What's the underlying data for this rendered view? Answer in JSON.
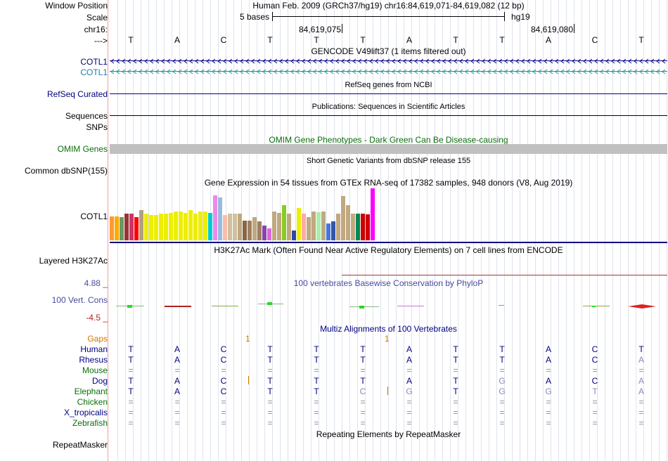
{
  "labels": {
    "window_position": "Window Position",
    "scale": "Scale",
    "chrom": "chr16:",
    "arrow": "--->",
    "cotl1_a": "COTL1",
    "cotl1_b": "COTL1",
    "refseq": "RefSeq Curated",
    "sequences": "Sequences",
    "snps": "SNPs",
    "omim": "OMIM Genes",
    "common_dbsnp": "Common dbSNP(155)",
    "gtex_gene": "COTL1",
    "h3k27ac": "Layered H3K27Ac",
    "cons_max": "4.88 _",
    "cons_label": "100 Vert. Cons",
    "cons_min": "-4.5 _"
  },
  "header": {
    "position": "Human Feb. 2009 (GRCh37/hg19)   chr16:84,619,071-84,619,082 (12 bp)",
    "scale_text": "5 bases",
    "assembly": "hg19",
    "coord1": "84,619,075",
    "coord2": "84,619,080"
  },
  "sequence": [
    "T",
    "A",
    "C",
    "T",
    "T",
    "T",
    "A",
    "T",
    "T",
    "A",
    "C",
    "T"
  ],
  "tracks": {
    "gencode": "GENCODE V49lift37 (1 items filtered out)",
    "refseq_title": "RefSeq genes from NCBI",
    "publications_title": "Publications: Sequences in Scientific Articles",
    "omim_title": "OMIM Gene Phenotypes - Dark Green Can Be Disease-causing",
    "snp_title": "Short Genetic Variants from dbSNP release 155",
    "gtex_title": "Gene Expression in 54 tissues from GTEx RNA-seq of 17382 samples, 948 donors (V8, Aug 2019)",
    "h3k27ac_title": "H3K27Ac Mark (Often Found Near Active Regulatory Elements) on 7 cell lines from ENCODE",
    "phylop_title": "100 vertebrates Basewise Conservation by PhyloP",
    "multiz_title": "Multiz Alignments of 100 Vertebrates",
    "repeat_title": "Repeating Elements by RepeatMasker"
  },
  "multiz": {
    "gaps_label": "Gaps",
    "gaps_marks": [
      "1",
      "1"
    ],
    "species": [
      {
        "name": "Human",
        "bases": [
          "T",
          "A",
          "C",
          "T",
          "T",
          "T",
          "A",
          "T",
          "T",
          "A",
          "C",
          "T"
        ]
      },
      {
        "name": "Rhesus",
        "bases": [
          "T",
          "A",
          "C",
          "T",
          "T",
          "T",
          "A",
          "T",
          "T",
          "A",
          "C",
          "A"
        ]
      },
      {
        "name": "Mouse",
        "bases": [
          "=",
          "=",
          "=",
          "=",
          "=",
          "=",
          "=",
          "=",
          "=",
          "=",
          "=",
          "="
        ]
      },
      {
        "name": "Dog",
        "bases": [
          "T",
          "A",
          "C",
          "T",
          "T",
          "T",
          "A",
          "T",
          "G",
          "A",
          "C",
          "A"
        ]
      },
      {
        "name": "Elephant",
        "bases": [
          "T",
          "A",
          "C",
          "T",
          "T",
          "C",
          "G",
          "T",
          "G",
          "G",
          "T",
          "A"
        ]
      },
      {
        "name": "Chicken",
        "bases": [
          "=",
          "=",
          "=",
          "=",
          "=",
          "=",
          "=",
          "=",
          "=",
          "=",
          "=",
          "="
        ]
      },
      {
        "name": "X_tropicalis",
        "bases": [
          "=",
          "=",
          "=",
          "=",
          "=",
          "=",
          "=",
          "=",
          "=",
          "=",
          "=",
          "="
        ]
      },
      {
        "name": "Zebrafish",
        "bases": [
          "=",
          "=",
          "=",
          "=",
          "=",
          "=",
          "=",
          "=",
          "=",
          "=",
          "=",
          "="
        ]
      }
    ]
  },
  "repeat_label": "RepeatMasker",
  "gtex_bars": [
    {
      "v": 0.46,
      "c": "#ff9933"
    },
    {
      "v": 0.46,
      "c": "#ffaa00"
    },
    {
      "v": 0.45,
      "c": "#669966"
    },
    {
      "v": 0.51,
      "c": "#993333"
    },
    {
      "v": 0.51,
      "c": "#cc3366"
    },
    {
      "v": 0.45,
      "c": "#ff0000"
    },
    {
      "v": 0.58,
      "c": "#b0a080"
    },
    {
      "v": 0.51,
      "c": "#eeee00"
    },
    {
      "v": 0.49,
      "c": "#eeee00"
    },
    {
      "v": 0.49,
      "c": "#eeee00"
    },
    {
      "v": 0.51,
      "c": "#eeee00"
    },
    {
      "v": 0.51,
      "c": "#eeee00"
    },
    {
      "v": 0.53,
      "c": "#eeee00"
    },
    {
      "v": 0.55,
      "c": "#eeee00"
    },
    {
      "v": 0.56,
      "c": "#eeee00"
    },
    {
      "v": 0.53,
      "c": "#eeee00"
    },
    {
      "v": 0.58,
      "c": "#eeee00"
    },
    {
      "v": 0.51,
      "c": "#eeee00"
    },
    {
      "v": 0.55,
      "c": "#eeee00"
    },
    {
      "v": 0.56,
      "c": "#eeee00"
    },
    {
      "v": 0.53,
      "c": "#00cccc"
    },
    {
      "v": 0.87,
      "c": "#ee88ee"
    },
    {
      "v": 0.82,
      "c": "#99bbdd"
    },
    {
      "v": 0.48,
      "c": "#ffbbaa"
    },
    {
      "v": 0.51,
      "c": "#d0c0a0"
    },
    {
      "v": 0.51,
      "c": "#d0c0a0"
    },
    {
      "v": 0.51,
      "c": "#c0a880"
    },
    {
      "v": 0.38,
      "c": "#886644"
    },
    {
      "v": 0.38,
      "c": "#a08060"
    },
    {
      "v": 0.45,
      "c": "#c0a880"
    },
    {
      "v": 0.37,
      "c": "#a08060"
    },
    {
      "v": 0.28,
      "c": "#8844aa"
    },
    {
      "v": 0.23,
      "c": "#dd66dd"
    },
    {
      "v": 0.55,
      "c": "#c0a880"
    },
    {
      "v": 0.53,
      "c": "#c0a880"
    },
    {
      "v": 0.68,
      "c": "#88cc22"
    },
    {
      "v": 0.51,
      "c": "#c0a880"
    },
    {
      "v": 0.19,
      "c": "#3344aa"
    },
    {
      "v": 0.62,
      "c": "#eeee00"
    },
    {
      "v": 0.51,
      "c": "#ffaaaa"
    },
    {
      "v": 0.44,
      "c": "#c0a880"
    },
    {
      "v": 0.55,
      "c": "#c0a880"
    },
    {
      "v": 0.54,
      "c": "#aaeeaa"
    },
    {
      "v": 0.55,
      "c": "#c0a880"
    },
    {
      "v": 0.33,
      "c": "#4477dd"
    },
    {
      "v": 0.36,
      "c": "#3355aa"
    },
    {
      "v": 0.52,
      "c": "#c0a880"
    },
    {
      "v": 0.85,
      "c": "#c0a880"
    },
    {
      "v": 0.68,
      "c": "#c0a880"
    },
    {
      "v": 0.51,
      "c": "#c0a880"
    },
    {
      "v": 0.51,
      "c": "#008855"
    },
    {
      "v": 0.51,
      "c": "#cc0000"
    },
    {
      "v": 0.5,
      "c": "#cc0000"
    },
    {
      "v": 1.0,
      "c": "#ff00ff"
    }
  ],
  "colors": {
    "dark_blue": "#000080",
    "teal": "#1a7fb0",
    "omim_green": "#0a6e0a",
    "gaps_orange": "#cc7700",
    "phylop_blue": "#4a4aa0",
    "cons_red": "#b22222",
    "omim_gray": "#c0c0c0",
    "divider": "#f0a0a0",
    "guide": "#dfe3ee",
    "magenta": "#ff00ff"
  }
}
